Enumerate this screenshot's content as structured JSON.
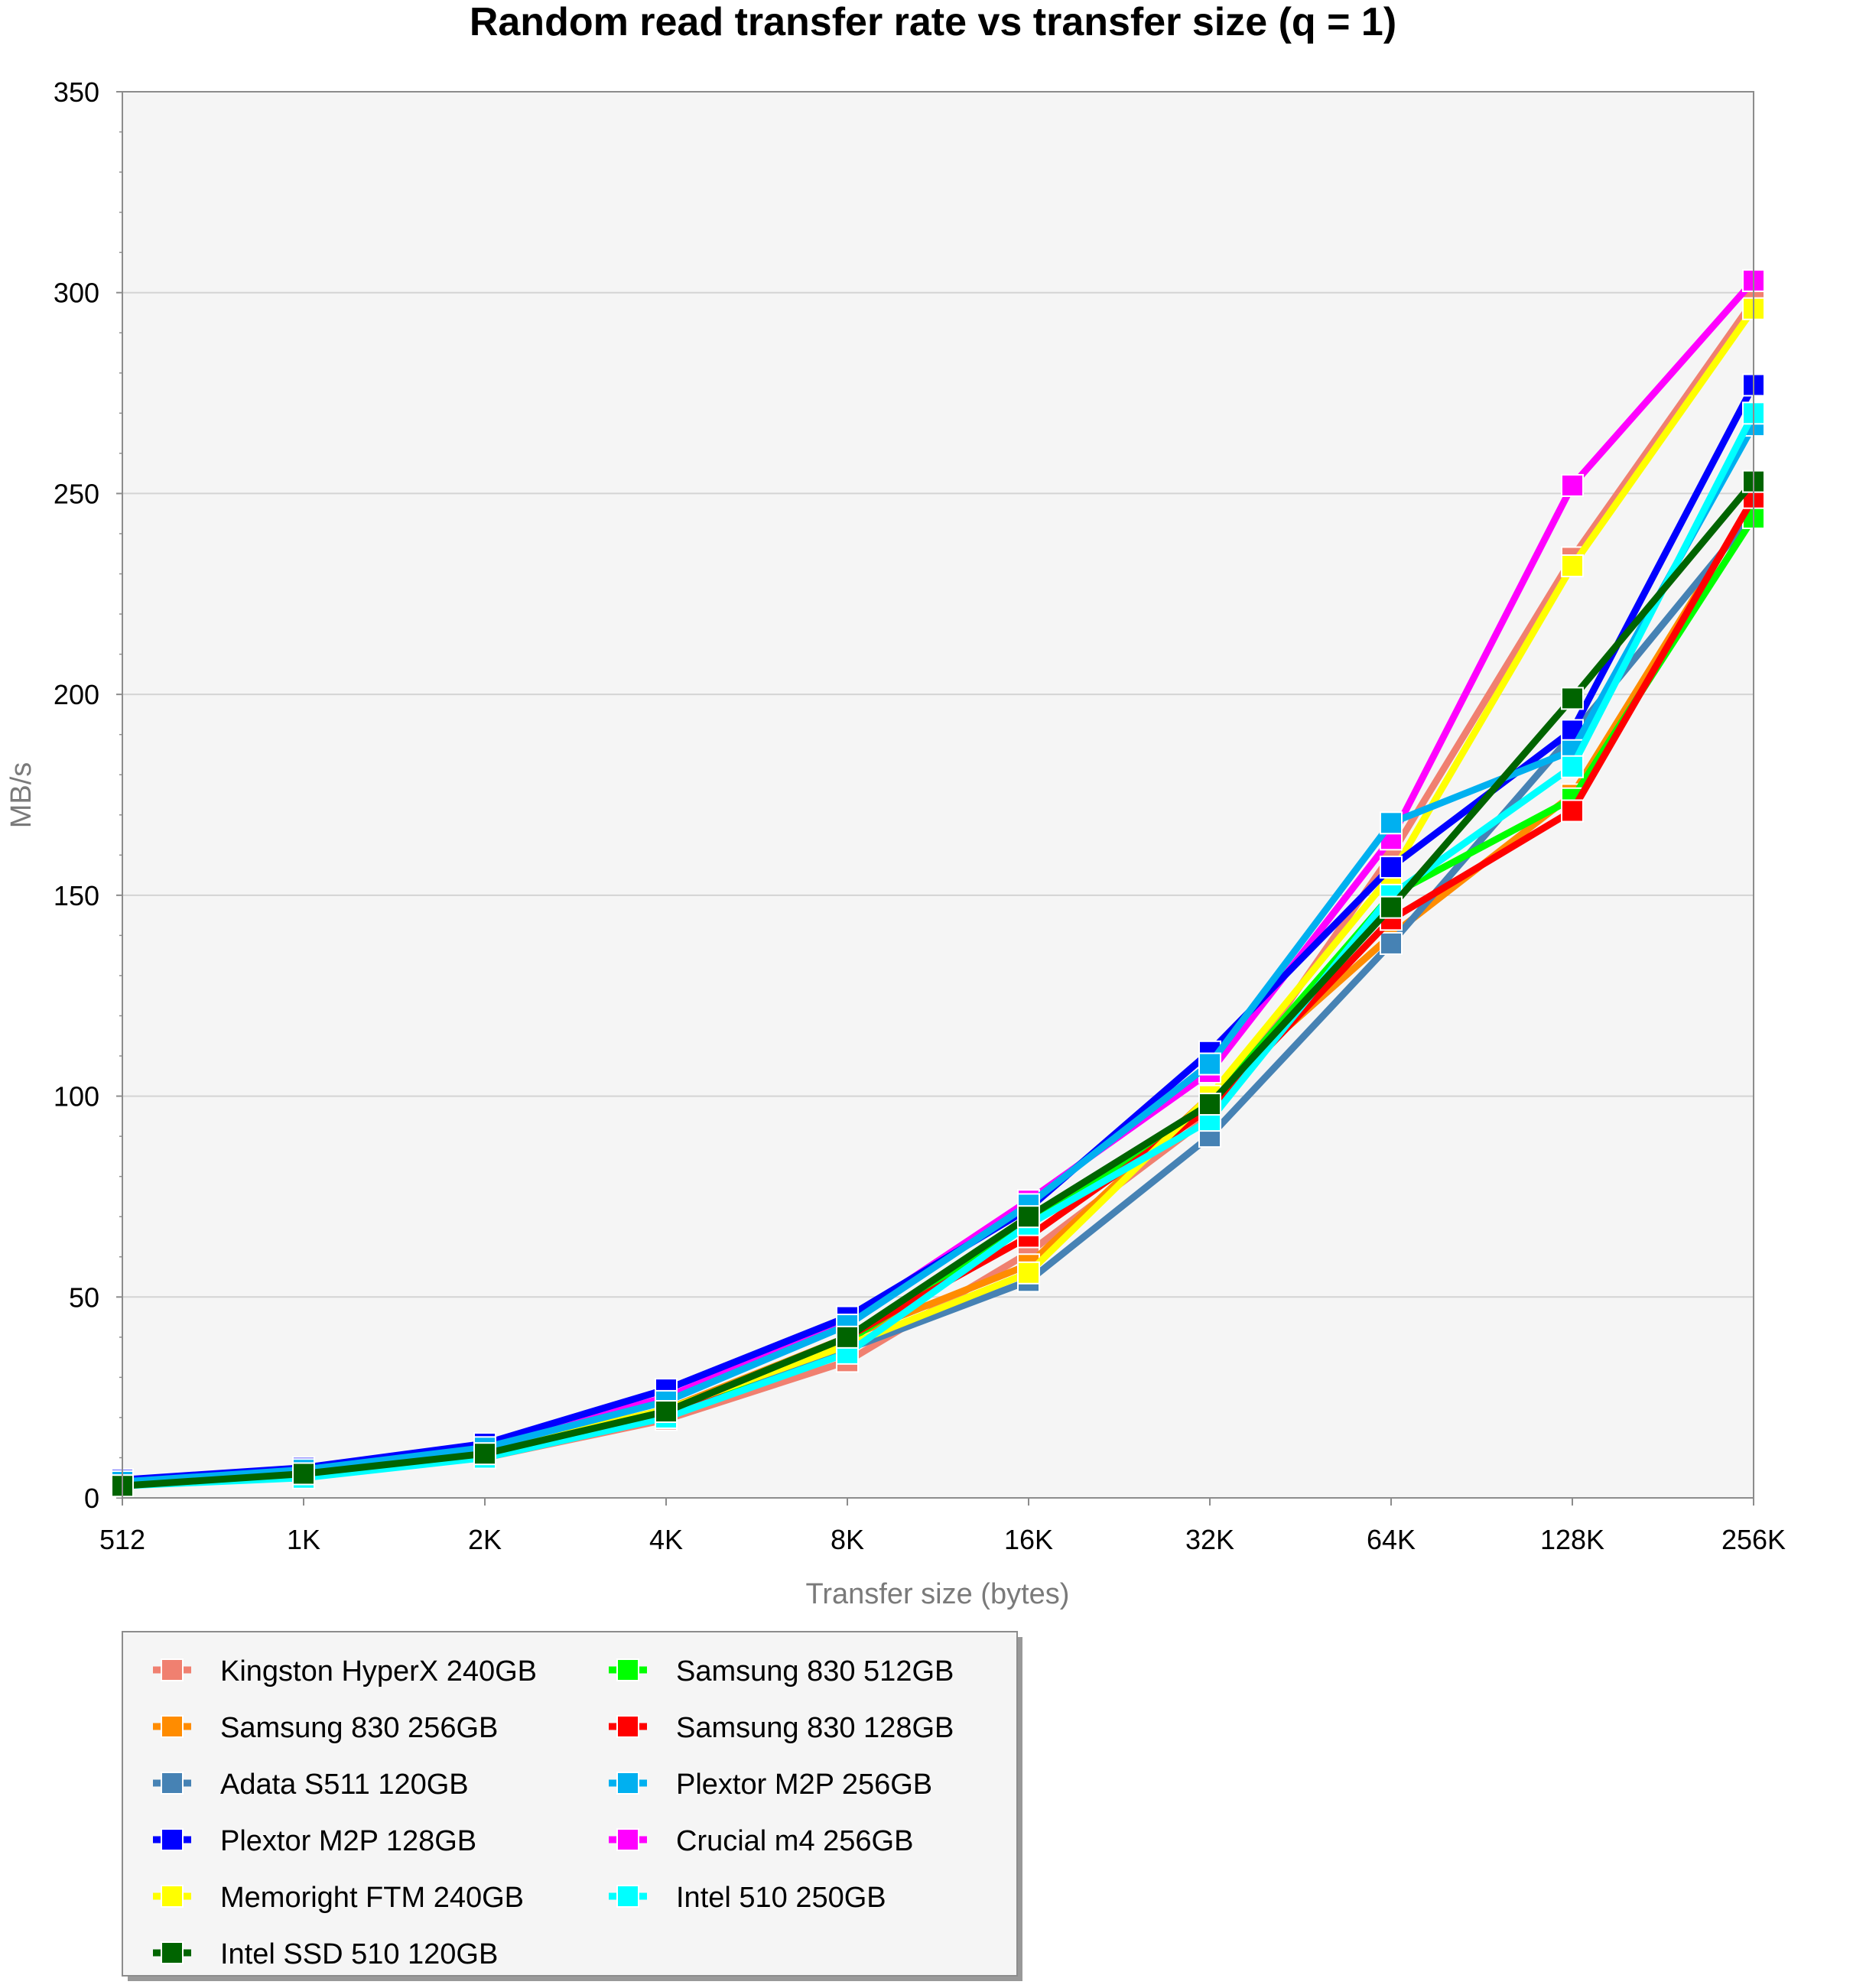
{
  "chart_data": {
    "type": "line",
    "title": "Random read transfer rate vs transfer size (q = 1)",
    "xlabel": "Transfer size (bytes)",
    "ylabel": "MB/s",
    "ylim": [
      0,
      350
    ],
    "yticks": [
      0,
      50,
      100,
      150,
      200,
      250,
      300,
      350
    ],
    "grid": true,
    "legend_position": "bottom-left",
    "categories": [
      "512",
      "1K",
      "2K",
      "4K",
      "8K",
      "16K",
      "32K",
      "64K",
      "128K",
      "256K"
    ],
    "series": [
      {
        "name": "Kingston HyperX 240GB",
        "color": "#f08070",
        "values": [
          3,
          5.5,
          10,
          19.5,
          34,
          61,
          95,
          160,
          234,
          298
        ]
      },
      {
        "name": "Samsung 830 256GB",
        "color": "#ff8c00",
        "values": [
          3.5,
          6.5,
          11.5,
          22,
          40,
          58,
          100,
          140,
          175,
          248
        ]
      },
      {
        "name": "Adata S511 120GB",
        "color": "#4682b4",
        "values": [
          3.5,
          6,
          10.5,
          20,
          37,
          54,
          90,
          138,
          190,
          245
        ]
      },
      {
        "name": "Plextor M2P 128GB",
        "color": "#0000ff",
        "values": [
          4.5,
          7.5,
          13.5,
          27,
          45,
          72,
          111,
          157,
          191,
          277
        ]
      },
      {
        "name": "Memoright FTM 240GB",
        "color": "#ffff00",
        "values": [
          3.5,
          6.5,
          11.5,
          22,
          38,
          56,
          100,
          155,
          232,
          296
        ]
      },
      {
        "name": "Intel SSD 510 120GB",
        "color": "#006400",
        "values": [
          3,
          6,
          11,
          21.5,
          40,
          70,
          98,
          147,
          199,
          253
        ]
      },
      {
        "name": "Samsung 830 512GB",
        "color": "#00ff00",
        "values": [
          3.5,
          6,
          11,
          21,
          39,
          68,
          98,
          150,
          174,
          244
        ]
      },
      {
        "name": "Samsung 830 128GB",
        "color": "#ff0000",
        "values": [
          3,
          6,
          11,
          21,
          40,
          65,
          97,
          144,
          171,
          249
        ]
      },
      {
        "name": "Plextor M2P 256GB",
        "color": "#00b0f0",
        "values": [
          4,
          7,
          12.5,
          24,
          43,
          73,
          108,
          168,
          186,
          267
        ]
      },
      {
        "name": "Crucial m4 256GB",
        "color": "#ff00ff",
        "values": [
          4,
          7,
          13,
          25,
          44,
          74,
          106,
          164,
          252,
          303
        ]
      },
      {
        "name": "Intel 510 250GB",
        "color": "#00ffff",
        "values": [
          3,
          5,
          10,
          20,
          36,
          68,
          94,
          150,
          182,
          270
        ]
      }
    ]
  },
  "legend": {
    "left": [
      "Kingston HyperX 240GB",
      "Samsung 830 256GB",
      "Adata S511 120GB",
      "Plextor M2P 128GB",
      "Memoright FTM 240GB",
      "Intel SSD 510 120GB"
    ],
    "right": [
      "Samsung 830 512GB",
      "Samsung 830 128GB",
      "Plextor M2P 256GB",
      "Crucial m4 256GB",
      "Intel 510 250GB"
    ]
  }
}
